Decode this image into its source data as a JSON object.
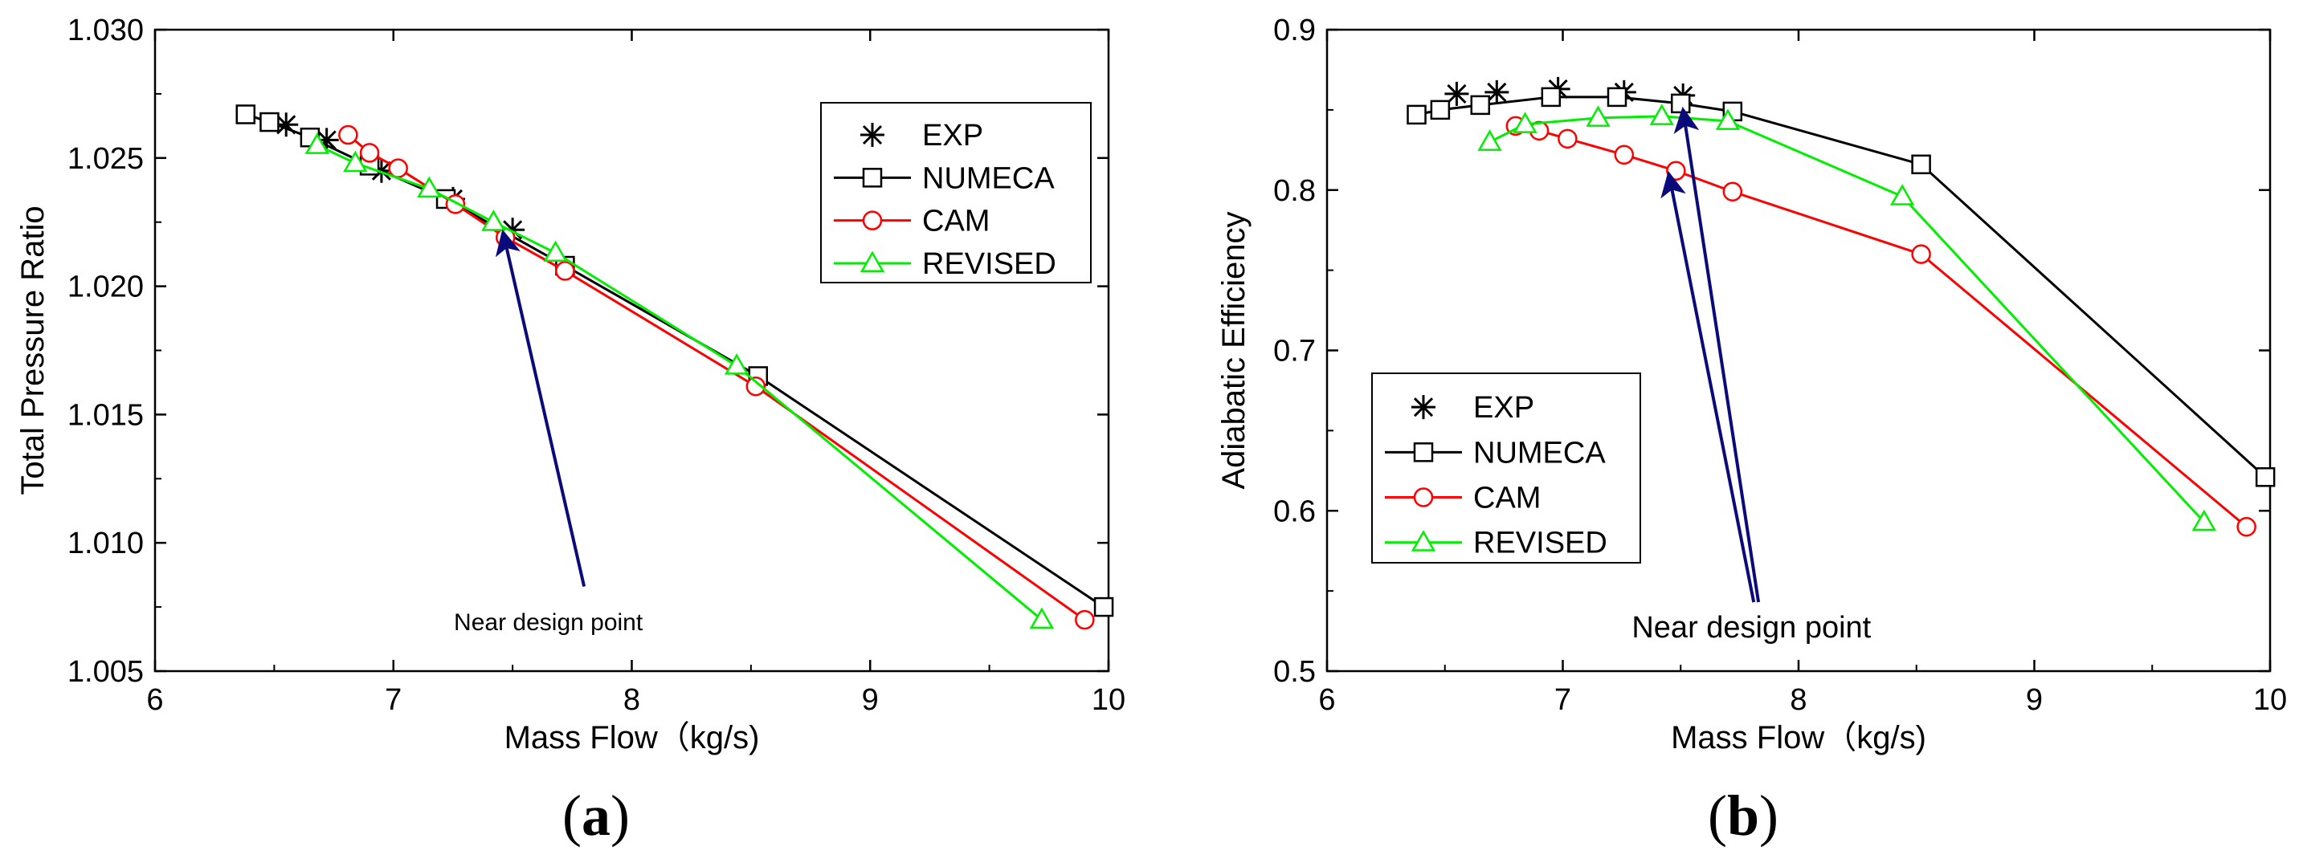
{
  "chart_data": [
    {
      "type": "line",
      "panel_label_open": "(",
      "panel_label_letter": "a",
      "panel_label_close": ")",
      "xlabel": "Mass Flow（kg/s)",
      "ylabel": "Total Pressure Ratio",
      "xlim": [
        6,
        10
      ],
      "ylim": [
        1.005,
        1.03
      ],
      "xticks": [
        "6",
        "7",
        "8",
        "9",
        "10"
      ],
      "yticks": [
        "1.005",
        "1.010",
        "1.015",
        "1.020",
        "1.025",
        "1.030"
      ],
      "legend_position": "top-right",
      "series": [
        {
          "name": "EXP",
          "color": "#000000",
          "marker": "asterisk",
          "line": false,
          "x": [
            6.55,
            6.72,
            6.95,
            7.25,
            7.5
          ],
          "y": [
            1.0263,
            1.0257,
            1.0245,
            1.0234,
            1.0222
          ]
        },
        {
          "name": "NUMECA",
          "color": "#000000",
          "marker": "square",
          "line": true,
          "x": [
            6.38,
            6.48,
            6.65,
            6.9,
            7.22,
            7.72,
            8.53,
            9.98
          ],
          "y": [
            1.0267,
            1.0264,
            1.0258,
            1.0247,
            1.0234,
            1.0208,
            1.0165,
            1.0075
          ]
        },
        {
          "name": "CAM",
          "color": "#ff0000",
          "marker": "circle",
          "line": true,
          "x": [
            6.81,
            6.9,
            7.02,
            7.26,
            7.47,
            7.72,
            8.52,
            9.9
          ],
          "y": [
            1.0259,
            1.0252,
            1.0246,
            1.0232,
            1.0219,
            1.0206,
            1.0161,
            1.007
          ]
        },
        {
          "name": "REVISED",
          "color": "#00ee00",
          "marker": "triangle",
          "line": true,
          "x": [
            6.68,
            6.84,
            7.15,
            7.42,
            7.68,
            8.44,
            9.72
          ],
          "y": [
            1.0255,
            1.0248,
            1.0238,
            1.0225,
            1.0213,
            1.0169,
            1.007
          ]
        }
      ],
      "annotations": [
        {
          "text": "Near design point",
          "text_at": [
            7.65,
            1.0066
          ],
          "arrow_from": [
            7.8,
            1.0083
          ],
          "arrow_to": [
            7.46,
            1.0221
          ]
        }
      ]
    },
    {
      "type": "line",
      "panel_label_open": "(",
      "panel_label_letter": "b",
      "panel_label_close": ")",
      "xlabel": "Mass Flow（kg/s)",
      "ylabel": "Adiabatic Efficiency",
      "xlim": [
        6,
        10
      ],
      "ylim": [
        0.5,
        0.9
      ],
      "xticks": [
        "6",
        "7",
        "8",
        "9",
        "10"
      ],
      "yticks": [
        "0.5",
        "0.6",
        "0.7",
        "0.8",
        "0.9"
      ],
      "legend_position": "middle-left",
      "series": [
        {
          "name": "EXP",
          "color": "#000000",
          "marker": "asterisk",
          "line": false,
          "x": [
            6.55,
            6.72,
            6.98,
            7.26,
            7.51
          ],
          "y": [
            0.86,
            0.861,
            0.863,
            0.861,
            0.859
          ]
        },
        {
          "name": "NUMECA",
          "color": "#000000",
          "marker": "square",
          "line": true,
          "x": [
            6.38,
            6.48,
            6.65,
            6.95,
            7.23,
            7.5,
            7.72,
            8.52,
            9.98
          ],
          "y": [
            0.847,
            0.85,
            0.853,
            0.858,
            0.858,
            0.854,
            0.849,
            0.816,
            0.621
          ]
        },
        {
          "name": "CAM",
          "color": "#ff0000",
          "marker": "circle",
          "line": true,
          "x": [
            6.8,
            6.9,
            7.02,
            7.26,
            7.48,
            7.72,
            8.52,
            9.9
          ],
          "y": [
            0.84,
            0.837,
            0.832,
            0.822,
            0.812,
            0.799,
            0.76,
            0.59
          ]
        },
        {
          "name": "REVISED",
          "color": "#00ee00",
          "marker": "triangle",
          "line": true,
          "x": [
            6.69,
            6.84,
            7.15,
            7.42,
            7.7,
            8.44,
            9.72
          ],
          "y": [
            0.83,
            0.841,
            0.845,
            0.846,
            0.843,
            0.796,
            0.593
          ]
        }
      ],
      "annotations": [
        {
          "text": "Near design point",
          "text_at": [
            7.8,
            0.521
          ],
          "arrows": [
            {
              "from": [
                7.81,
                0.543
              ],
              "to": [
                7.45,
                0.81
              ]
            },
            {
              "from": [
                7.83,
                0.543
              ],
              "to": [
                7.51,
                0.85
              ]
            }
          ]
        }
      ]
    }
  ]
}
